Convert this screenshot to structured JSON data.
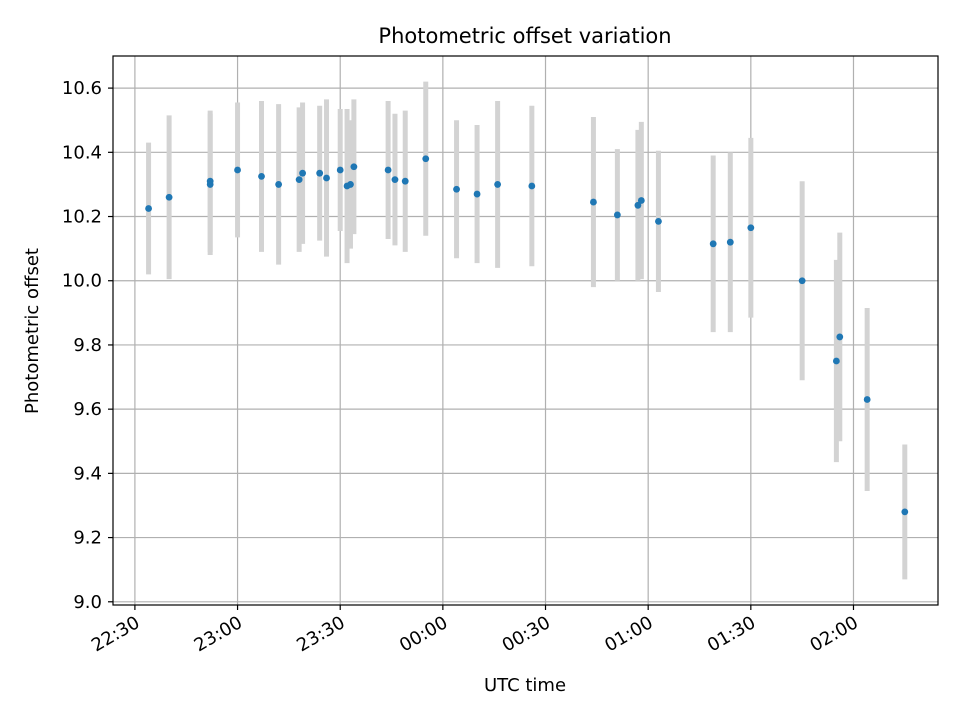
{
  "chart_data": {
    "type": "scatter",
    "title": "Photometric offset variation",
    "xlabel": "UTC time",
    "ylabel": "Photometric offset",
    "x_ticks": [
      "22:30",
      "23:00",
      "23:30",
      "00:00",
      "00:30",
      "01:00",
      "01:30",
      "02:00"
    ],
    "x_tick_minutes": [
      1350,
      1380,
      1410,
      1440,
      1470,
      1500,
      1530,
      1560
    ],
    "y_ticks": [
      "9.0",
      "9.2",
      "9.4",
      "9.6",
      "9.8",
      "10.0",
      "10.2",
      "10.4",
      "10.6"
    ],
    "y_tick_values": [
      9.0,
      9.2,
      9.4,
      9.6,
      9.8,
      10.0,
      10.2,
      10.4,
      10.6
    ],
    "xlim_minutes": [
      1343.6,
      1584.7
    ],
    "ylim": [
      8.99,
      10.7
    ],
    "grid": true,
    "colors": {
      "marker": "#1f77b4",
      "errorbar": "#d3d3d3",
      "grid": "#b0b0b0"
    },
    "points": [
      {
        "t": "22:34",
        "y": 10.225,
        "yerr": 0.205
      },
      {
        "t": "22:40",
        "y": 10.26,
        "yerr": 0.255
      },
      {
        "t": "22:52",
        "y": 10.31,
        "yerr": 0.22
      },
      {
        "t": "22:52",
        "y": 10.3,
        "yerr": 0.22
      },
      {
        "t": "23:00",
        "y": 10.345,
        "yerr": 0.21
      },
      {
        "t": "23:07",
        "y": 10.325,
        "yerr": 0.235
      },
      {
        "t": "23:12",
        "y": 10.3,
        "yerr": 0.25
      },
      {
        "t": "23:18",
        "y": 10.315,
        "yerr": 0.225
      },
      {
        "t": "23:19",
        "y": 10.335,
        "yerr": 0.22
      },
      {
        "t": "23:24",
        "y": 10.335,
        "yerr": 0.21
      },
      {
        "t": "23:26",
        "y": 10.32,
        "yerr": 0.245
      },
      {
        "t": "23:30",
        "y": 10.345,
        "yerr": 0.19
      },
      {
        "t": "23:32",
        "y": 10.295,
        "yerr": 0.24
      },
      {
        "t": "23:33",
        "y": 10.3,
        "yerr": 0.2
      },
      {
        "t": "23:34",
        "y": 10.355,
        "yerr": 0.21
      },
      {
        "t": "23:44",
        "y": 10.345,
        "yerr": 0.215
      },
      {
        "t": "23:46",
        "y": 10.315,
        "yerr": 0.205
      },
      {
        "t": "23:49",
        "y": 10.31,
        "yerr": 0.22
      },
      {
        "t": "23:55",
        "y": 10.38,
        "yerr": 0.24
      },
      {
        "t": "00:04",
        "y": 10.285,
        "yerr": 0.215
      },
      {
        "t": "00:10",
        "y": 10.27,
        "yerr": 0.215
      },
      {
        "t": "00:16",
        "y": 10.3,
        "yerr": 0.26
      },
      {
        "t": "00:26",
        "y": 10.295,
        "yerr": 0.25
      },
      {
        "t": "00:44",
        "y": 10.245,
        "yerr": 0.265
      },
      {
        "t": "00:51",
        "y": 10.205,
        "yerr": 0.205
      },
      {
        "t": "00:57",
        "y": 10.235,
        "yerr": 0.235
      },
      {
        "t": "00:58",
        "y": 10.25,
        "yerr": 0.245
      },
      {
        "t": "01:03",
        "y": 10.185,
        "yerr": 0.22
      },
      {
        "t": "01:19",
        "y": 10.115,
        "yerr": 0.275
      },
      {
        "t": "01:24",
        "y": 10.12,
        "yerr": 0.28
      },
      {
        "t": "01:30",
        "y": 10.165,
        "yerr": 0.28
      },
      {
        "t": "01:45",
        "y": 10.0,
        "yerr": 0.31
      },
      {
        "t": "01:55",
        "y": 9.75,
        "yerr": 0.315
      },
      {
        "t": "01:56",
        "y": 9.825,
        "yerr": 0.325
      },
      {
        "t": "02:04",
        "y": 9.63,
        "yerr": 0.285
      },
      {
        "t": "02:15",
        "y": 9.28,
        "yerr": 0.21
      }
    ]
  }
}
